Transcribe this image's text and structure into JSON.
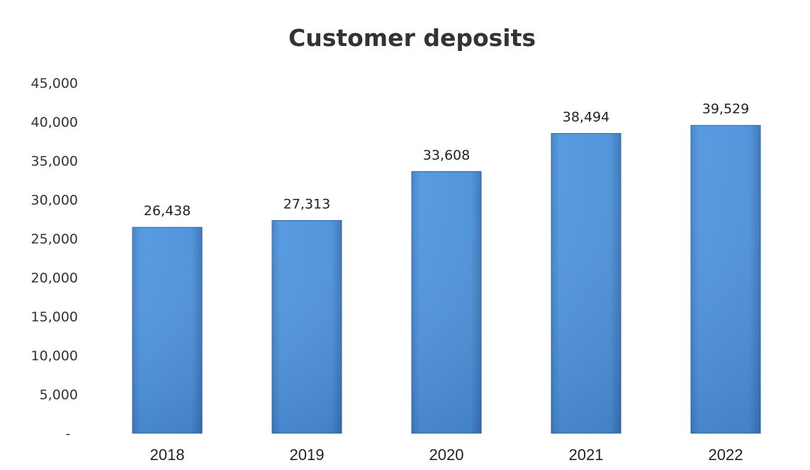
{
  "chart_data": {
    "type": "bar",
    "title": "Customer deposits",
    "categories": [
      "2018",
      "2019",
      "2020",
      "2021",
      "2022"
    ],
    "values": [
      26438,
      27313,
      33608,
      38494,
      39529
    ],
    "data_labels": [
      "26,438",
      "27,313",
      "33,608",
      "38,494",
      "39,529"
    ],
    "y_tick_labels": [
      "-",
      "5,000",
      "10,000",
      "15,000",
      "20,000",
      "25,000",
      "30,000",
      "35,000",
      "40,000",
      "45,000"
    ],
    "ylim": [
      0,
      45000
    ],
    "xlabel": "",
    "ylabel": "",
    "grid": false,
    "legend": "none",
    "bar_color": "#4a8fd8"
  }
}
